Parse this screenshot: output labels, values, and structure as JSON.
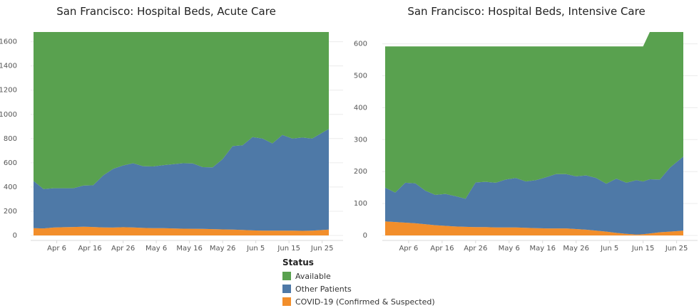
{
  "colors": {
    "available": "#59a14f",
    "other": "#4e79a7",
    "covid": "#f28e2b"
  },
  "legend": {
    "title": "Status",
    "items": [
      {
        "key": "available",
        "label": "Available"
      },
      {
        "key": "other",
        "label": "Other Patients"
      },
      {
        "key": "covid",
        "label": "COVID-19 (Confirmed & Suspected)"
      }
    ]
  },
  "chart_data": [
    {
      "type": "area",
      "stacked": true,
      "title": "San Francisco: Hospital Beds, Acute Care",
      "xlabel": "",
      "ylabel": "",
      "x_start": "2020-03-30",
      "x_end": "2020-06-27",
      "x_tick_dates": [
        "2020-04-06",
        "2020-04-16",
        "2020-04-26",
        "2020-05-06",
        "2020-05-16",
        "2020-05-26",
        "2020-06-05",
        "2020-06-15",
        "2020-06-25"
      ],
      "x_tick_labels": [
        "Apr 6",
        "Apr 16",
        "Apr 26",
        "May 6",
        "May 16",
        "May 26",
        "Jun 5",
        "Jun 15",
        "Jun 25"
      ],
      "ylim": [
        0,
        1680
      ],
      "y_ticks": [
        0,
        200,
        400,
        600,
        800,
        1000,
        1200,
        1400,
        1600
      ],
      "grid": true,
      "legend": "bottom",
      "x": [
        "2020-03-30",
        "2020-04-02",
        "2020-04-05",
        "2020-04-08",
        "2020-04-11",
        "2020-04-14",
        "2020-04-17",
        "2020-04-20",
        "2020-04-23",
        "2020-04-26",
        "2020-04-29",
        "2020-05-02",
        "2020-05-05",
        "2020-05-08",
        "2020-05-11",
        "2020-05-14",
        "2020-05-17",
        "2020-05-20",
        "2020-05-23",
        "2020-05-26",
        "2020-05-29",
        "2020-06-01",
        "2020-06-04",
        "2020-06-07",
        "2020-06-10",
        "2020-06-13",
        "2020-06-16",
        "2020-06-19",
        "2020-06-22",
        "2020-06-27"
      ],
      "series": [
        {
          "name": "COVID-19 (Confirmed & Suspected)",
          "key": "covid",
          "values": [
            60,
            58,
            65,
            68,
            70,
            72,
            70,
            66,
            65,
            68,
            66,
            62,
            60,
            60,
            58,
            56,
            55,
            54,
            52,
            50,
            48,
            45,
            42,
            40,
            40,
            40,
            40,
            38,
            40,
            48
          ]
        },
        {
          "name": "Other Patients",
          "key": "other",
          "values": [
            390,
            325,
            325,
            322,
            320,
            340,
            345,
            430,
            485,
            510,
            530,
            510,
            510,
            520,
            530,
            540,
            540,
            510,
            510,
            580,
            690,
            700,
            770,
            760,
            720,
            790,
            760,
            770,
            760,
            832
          ]
        },
        {
          "name": "Available",
          "key": "available",
          "values": [
            1230,
            1297,
            1290,
            1290,
            1290,
            1268,
            1265,
            1184,
            1130,
            1102,
            1084,
            1108,
            1110,
            1100,
            1092,
            1084,
            1085,
            1116,
            1118,
            1050,
            942,
            935,
            868,
            880,
            920,
            850,
            880,
            872,
            880,
            800
          ]
        }
      ]
    },
    {
      "type": "area",
      "stacked": true,
      "title": "San Francisco: Hospital Beds, Intensive Care",
      "xlabel": "",
      "ylabel": "",
      "x_start": "2020-03-30",
      "x_end": "2020-06-27",
      "x_tick_dates": [
        "2020-04-06",
        "2020-04-16",
        "2020-04-26",
        "2020-05-06",
        "2020-05-16",
        "2020-05-26",
        "2020-06-05",
        "2020-06-15",
        "2020-06-25"
      ],
      "x_tick_labels": [
        "Apr 6",
        "Apr 16",
        "Apr 26",
        "May 6",
        "May 16",
        "May 26",
        "Jun 5",
        "Jun 15",
        "Jun 25"
      ],
      "ylim": [
        0,
        637
      ],
      "y_ticks": [
        0,
        100,
        200,
        300,
        400,
        500,
        600
      ],
      "grid": true,
      "legend": "bottom",
      "x": [
        "2020-03-30",
        "2020-04-02",
        "2020-04-05",
        "2020-04-08",
        "2020-04-11",
        "2020-04-14",
        "2020-04-17",
        "2020-04-20",
        "2020-04-23",
        "2020-04-26",
        "2020-04-29",
        "2020-05-02",
        "2020-05-05",
        "2020-05-08",
        "2020-05-11",
        "2020-05-14",
        "2020-05-17",
        "2020-05-20",
        "2020-05-23",
        "2020-05-26",
        "2020-05-29",
        "2020-06-01",
        "2020-06-04",
        "2020-06-07",
        "2020-06-10",
        "2020-06-13",
        "2020-06-15",
        "2020-06-17",
        "2020-06-20",
        "2020-06-23",
        "2020-06-27"
      ],
      "series": [
        {
          "name": "COVID-19 (Confirmed & Suspected)",
          "key": "covid",
          "values": [
            44,
            42,
            40,
            38,
            35,
            32,
            30,
            28,
            27,
            26,
            26,
            25,
            25,
            25,
            24,
            23,
            22,
            22,
            22,
            20,
            18,
            15,
            12,
            8,
            5,
            3,
            4,
            6,
            10,
            12,
            15
          ]
        },
        {
          "name": "Other Patients",
          "key": "other",
          "values": [
            106,
            92,
            125,
            125,
            105,
            95,
            100,
            95,
            88,
            140,
            142,
            140,
            150,
            155,
            145,
            150,
            160,
            170,
            170,
            165,
            170,
            165,
            150,
            170,
            160,
            170,
            165,
            170,
            165,
            200,
            232
          ]
        },
        {
          "name": "Available",
          "key": "available",
          "values": [
            442,
            458,
            427,
            429,
            452,
            465,
            462,
            469,
            477,
            426,
            424,
            427,
            417,
            412,
            423,
            419,
            410,
            400,
            400,
            407,
            404,
            412,
            430,
            414,
            427,
            419,
            423,
            461,
            462,
            425,
            390
          ]
        }
      ]
    }
  ]
}
